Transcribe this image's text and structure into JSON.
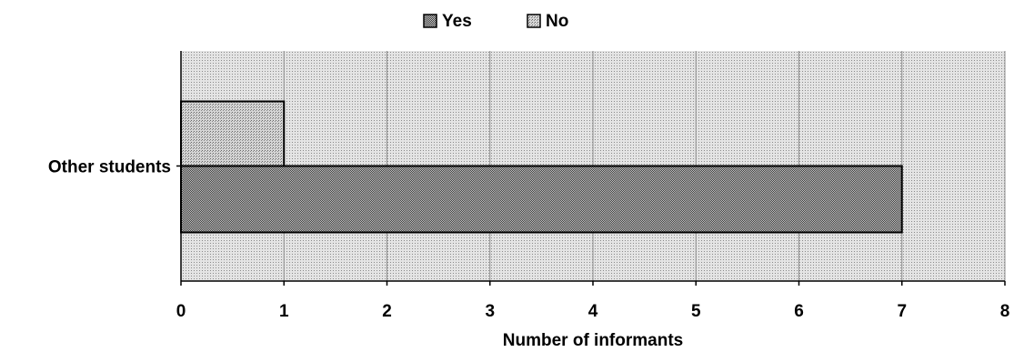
{
  "chart_data": {
    "type": "bar",
    "orientation": "horizontal",
    "categories": [
      "Other students"
    ],
    "series": [
      {
        "name": "Yes",
        "values": [
          7
        ]
      },
      {
        "name": "No",
        "values": [
          1
        ]
      }
    ],
    "xlabel": "Number of informants",
    "ylabel": "",
    "xlim": [
      0,
      8
    ],
    "xticks": [
      0,
      1,
      2,
      3,
      4,
      5,
      6,
      7,
      8
    ],
    "grid": true,
    "legend": "top-center"
  }
}
